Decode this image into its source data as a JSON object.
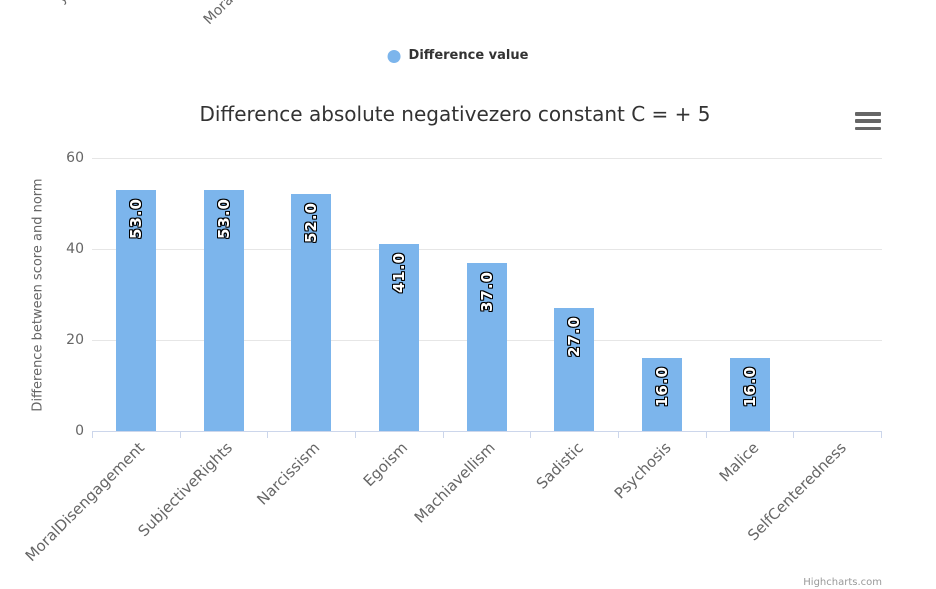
{
  "clipped_labels": {
    "left_fragment": "y",
    "right_fragment": "Mora"
  },
  "legend": {
    "items": [
      {
        "label": "Difference value",
        "marker_color": "#7cb5ec"
      }
    ]
  },
  "export_menu": {
    "icon": "hamburger-menu-icon"
  },
  "credits": {
    "label": "Highcharts.com"
  },
  "colors": {
    "bar": "#7cb5ec",
    "title_text": "#333333",
    "axis_text": "#666666",
    "gridline": "#e6e6e6",
    "axis_line": "#ccd6eb",
    "data_label_text": "#ffffff",
    "data_label_outline": "#000000",
    "credits_text": "#999999"
  },
  "chart_data": {
    "type": "bar",
    "title": "Difference absolute negativezero constant C = + 5",
    "categories": [
      "MoralDisengagement",
      "SubjectiveRights",
      "Narcissism",
      "Egoism",
      "Machiavellism",
      "Sadistic",
      "Psychosis",
      "Malice",
      "SelfCenteredness"
    ],
    "series": [
      {
        "name": "Difference value",
        "values": [
          53,
          53,
          52,
          41,
          37,
          27,
          16,
          16,
          0
        ]
      }
    ],
    "data_labels": [
      "53.0",
      "53.0",
      "52.0",
      "41.0",
      "37.0",
      "27.0",
      "16.0",
      "16.0",
      ""
    ],
    "data_label_rotation": -90,
    "xlabel": "",
    "ylabel": "Difference between score and norm",
    "ylim": [
      0,
      60
    ],
    "yticks": [
      0,
      20,
      40,
      60
    ],
    "ytick_labels": [
      "0",
      "20",
      "40",
      "60"
    ],
    "xtick_label_rotation": -45,
    "grid": true,
    "legend_position": "top"
  }
}
